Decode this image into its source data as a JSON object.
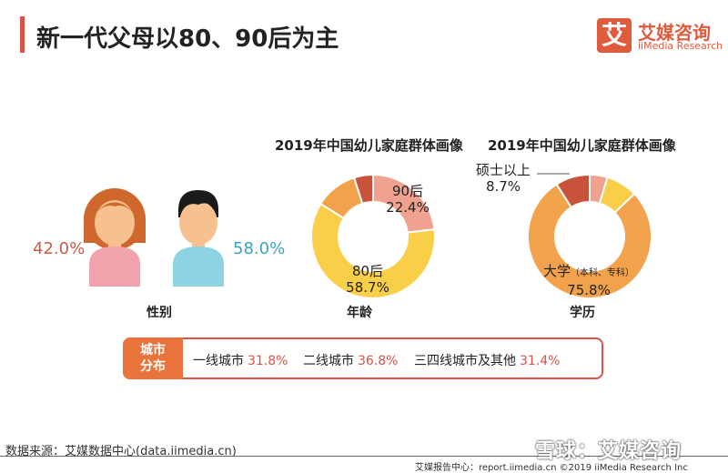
{
  "header": {
    "title": "新一代父母以80、90后为主",
    "logo_mark": "艾",
    "logo_cn": "艾媒咨询",
    "logo_en": "iiMedia Research"
  },
  "gender": {
    "female_pct": "42.0%",
    "male_pct": "58.0%",
    "caption": "性别"
  },
  "age_chart": {
    "caption": "年龄"
  },
  "edu_chart": {
    "caption": "学历"
  },
  "chart_data": [
    {
      "type": "pie",
      "title": "2019年中国幼儿家庭群体画像",
      "categories": [
        "90后",
        "80后",
        "",
        ""
      ],
      "values": [
        22.4,
        58.7,
        10.8,
        4.8
      ],
      "value_labels": [
        "22.4%",
        "58.7%",
        "",
        ""
      ],
      "colors": [
        "#f1a18f",
        "#f9cf4a",
        "#f2a24a",
        "#c9533a"
      ]
    },
    {
      "type": "pie",
      "title": "2019年中国幼儿家庭群体画像",
      "categories": [
        "",
        "",
        "大学",
        "硕士以上"
      ],
      "category_notes": [
        "",
        "",
        "（本科、专科）",
        ""
      ],
      "values": [
        4.5,
        8.0,
        75.8,
        8.7
      ],
      "value_labels": [
        "",
        "",
        "75.8%",
        "8.7%"
      ],
      "colors": [
        "#f1a18f",
        "#f9cf4a",
        "#f2a24a",
        "#c9533a"
      ]
    }
  ],
  "city": {
    "tag": "城市分布",
    "items": [
      {
        "label": "一线城市",
        "value": "31.8%"
      },
      {
        "label": "二线城市",
        "value": "36.8%"
      },
      {
        "label": "三四线城市及其他",
        "value": "31.4%"
      }
    ]
  },
  "footer": {
    "source": "数据来源：艾媒数据中心(data.iimedia.cn)",
    "right": "艾媒报告中心：report.iimedia.cn  ©2019  iiMedia Research  Inc",
    "watermark": "雪球：艾媒咨询"
  }
}
